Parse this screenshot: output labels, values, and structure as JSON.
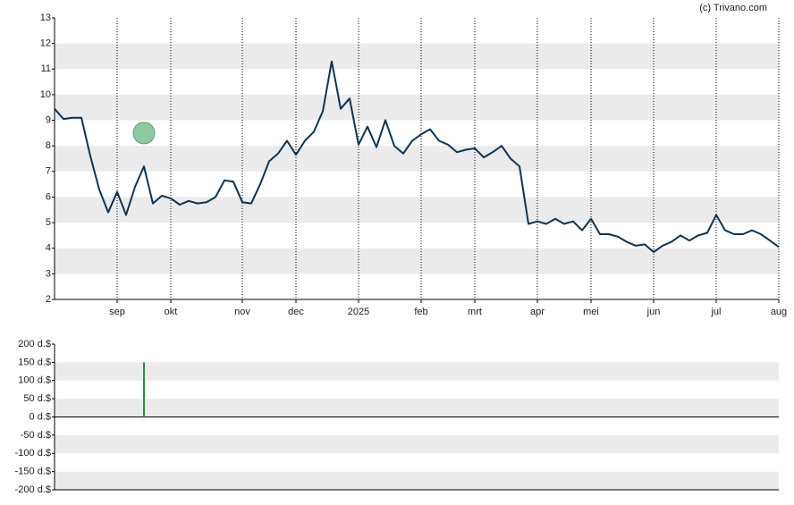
{
  "chart_data": [
    {
      "type": "line",
      "source": "(c) Trivano.com",
      "categories": [
        null,
        null,
        null,
        null,
        null,
        null,
        null,
        "sep",
        null,
        null,
        null,
        null,
        null,
        "okt",
        null,
        null,
        null,
        null,
        null,
        null,
        null,
        "nov",
        null,
        null,
        null,
        null,
        null,
        "dec",
        null,
        null,
        null,
        null,
        null,
        null,
        "2025",
        null,
        null,
        null,
        null,
        null,
        null,
        "feb",
        null,
        null,
        null,
        null,
        null,
        "mrt",
        null,
        null,
        null,
        null,
        null,
        null,
        "apr",
        null,
        null,
        null,
        null,
        null,
        "mei",
        null,
        null,
        null,
        null,
        null,
        null,
        "jun",
        null,
        null,
        null,
        null,
        null,
        null,
        "jul",
        null,
        null,
        null,
        null,
        null,
        null,
        "aug"
      ],
      "values": [
        9.45,
        9.05,
        9.1,
        9.1,
        7.6,
        6.3,
        5.4,
        6.2,
        5.3,
        6.4,
        7.2,
        5.75,
        6.05,
        5.95,
        5.7,
        5.85,
        5.75,
        5.8,
        6.0,
        6.65,
        6.6,
        5.8,
        5.75,
        6.5,
        7.4,
        7.7,
        8.2,
        7.65,
        8.2,
        8.55,
        9.35,
        11.3,
        9.45,
        9.85,
        8.05,
        8.75,
        7.95,
        9.0,
        8.0,
        7.7,
        8.2,
        8.45,
        8.65,
        8.2,
        8.05,
        7.75,
        7.85,
        7.9,
        7.55,
        7.75,
        8.0,
        7.5,
        7.2,
        4.95,
        5.05,
        4.95,
        5.15,
        4.95,
        5.05,
        4.7,
        5.15,
        4.55,
        4.55,
        4.45,
        4.25,
        4.1,
        4.15,
        3.85,
        4.1,
        4.25,
        4.5,
        4.3,
        4.5,
        4.6,
        5.3,
        4.7,
        4.55,
        4.55,
        4.7,
        4.55,
        4.3,
        4.05
      ],
      "color": "#0d3553",
      "buy_marker": {
        "color": "#8fc9a0",
        "values": [
          null,
          null,
          null,
          null,
          null,
          null,
          null,
          null,
          null,
          null,
          8.5,
          null,
          null,
          null,
          null,
          null,
          null,
          null,
          null,
          null,
          null,
          null,
          null,
          null,
          null,
          null,
          null,
          null,
          null,
          null,
          null,
          null,
          null,
          null,
          null,
          null,
          null,
          null,
          null,
          null,
          null,
          null,
          null,
          null,
          null,
          null,
          null,
          null,
          null,
          null,
          null,
          null,
          null,
          null,
          null,
          null,
          null,
          null,
          null,
          null,
          null,
          null,
          null,
          null,
          null,
          null,
          null,
          null,
          null,
          null,
          null,
          null,
          null,
          null,
          null,
          null,
          null,
          null,
          null,
          null,
          null,
          null
        ]
      },
      "ylim": [
        2,
        13
      ],
      "yticks": [
        2,
        3,
        4,
        5,
        6,
        7,
        8,
        9,
        10,
        11,
        12,
        13
      ],
      "grid": true
    },
    {
      "type": "bar",
      "color": "#2e8b3e",
      "values": [
        null,
        null,
        null,
        null,
        null,
        null,
        null,
        null,
        null,
        null,
        150,
        null,
        null,
        null,
        null,
        null,
        null,
        null,
        null,
        null,
        null,
        null,
        null,
        null,
        null,
        null,
        null,
        null,
        null,
        null,
        null,
        null,
        null,
        null,
        null,
        null,
        null,
        null,
        null,
        null,
        null,
        null,
        null,
        null,
        null,
        null,
        null,
        null,
        null,
        null,
        null,
        null,
        null,
        null,
        null,
        null,
        null,
        null,
        null,
        null,
        null,
        null,
        null,
        null,
        null,
        null,
        null,
        null,
        null,
        null,
        null,
        null,
        null,
        null,
        null,
        null,
        null,
        null,
        null,
        null,
        null,
        null
      ],
      "ylim": [
        -200,
        200
      ],
      "yticks": [
        {
          "value": -200,
          "label": "-200 d.$"
        },
        {
          "value": -150,
          "label": "-150 d.$"
        },
        {
          "value": -100,
          "label": "-100 d.$"
        },
        {
          "value": -50,
          "label": "-50 d.$"
        },
        {
          "value": 0,
          "label": "0 d.$"
        },
        {
          "value": 50,
          "label": "50 d.$"
        },
        {
          "value": 100,
          "label": "100 d.$"
        },
        {
          "value": 150,
          "label": "150 d.$"
        },
        {
          "value": 200,
          "label": "200 d.$"
        }
      ],
      "grid": true
    }
  ]
}
